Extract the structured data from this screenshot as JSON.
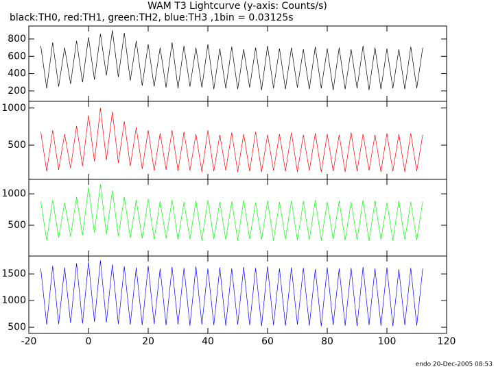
{
  "chart_data": [
    {
      "type": "line",
      "title": "WAM T3 Lightcurve (y-axis: Counts/s)",
      "subtitle": "black:TH0, red:TH1, green:TH2, blue:TH3 ,1bin = 0.03125s",
      "color": "#000000",
      "ylim": [
        80,
        950
      ],
      "yticks": [
        200,
        400,
        600,
        800
      ],
      "x": [
        -16,
        -14,
        -12,
        -10,
        -8,
        -6,
        -4,
        -2,
        0,
        2,
        4,
        6,
        8,
        10,
        12,
        14,
        16,
        18,
        20,
        22,
        24,
        26,
        28,
        30,
        32,
        34,
        36,
        38,
        40,
        42,
        44,
        46,
        48,
        50,
        52,
        54,
        56,
        58,
        60,
        62,
        64,
        66,
        68,
        70,
        72,
        74,
        76,
        78,
        80,
        82,
        84,
        86,
        88,
        90,
        92,
        94,
        96,
        98,
        100,
        102,
        104,
        106,
        108,
        110,
        112
      ],
      "values": [
        720,
        230,
        760,
        250,
        700,
        280,
        780,
        300,
        820,
        330,
        860,
        380,
        900,
        360,
        870,
        320,
        780,
        260,
        740,
        250,
        700,
        240,
        760,
        230,
        720,
        250,
        700,
        240,
        740,
        220,
        690,
        230,
        710,
        220,
        680,
        240,
        700,
        210,
        720,
        230,
        690,
        220,
        700,
        240,
        680,
        220,
        710,
        230,
        690,
        210,
        700,
        220,
        680,
        230,
        720,
        210,
        700,
        220,
        690,
        230,
        680,
        220,
        710,
        230,
        700
      ]
    },
    {
      "type": "line",
      "color": "#ff0000",
      "ylim": [
        40,
        1090
      ],
      "yticks": [
        500,
        1000
      ],
      "x": [
        -16,
        -14,
        -12,
        -10,
        -8,
        -6,
        -4,
        -2,
        0,
        2,
        4,
        6,
        8,
        10,
        12,
        14,
        16,
        18,
        20,
        22,
        24,
        26,
        28,
        30,
        32,
        34,
        36,
        38,
        40,
        42,
        44,
        46,
        48,
        50,
        52,
        54,
        56,
        58,
        60,
        62,
        64,
        66,
        68,
        70,
        72,
        74,
        76,
        78,
        80,
        82,
        84,
        86,
        88,
        90,
        92,
        94,
        96,
        98,
        100,
        102,
        104,
        106,
        108,
        110,
        112
      ],
      "values": [
        680,
        150,
        700,
        170,
        650,
        190,
        760,
        220,
        900,
        280,
        1000,
        300,
        950,
        260,
        820,
        220,
        740,
        180,
        700,
        160,
        660,
        170,
        700,
        150,
        680,
        160,
        650,
        140,
        700,
        150,
        640,
        160,
        670,
        140,
        650,
        150,
        680,
        140,
        640,
        160,
        650,
        150,
        670,
        140,
        640,
        160,
        660,
        140,
        650,
        150,
        640,
        140,
        670,
        150,
        650,
        160,
        640,
        140,
        660,
        150,
        650,
        140,
        660,
        150,
        640
      ]
    },
    {
      "type": "line",
      "color": "#00ff00",
      "ylim": [
        10,
        1230
      ],
      "yticks": [
        500,
        1000
      ],
      "x": [
        -16,
        -14,
        -12,
        -10,
        -8,
        -6,
        -4,
        -2,
        0,
        2,
        4,
        6,
        8,
        10,
        12,
        14,
        16,
        18,
        20,
        22,
        24,
        26,
        28,
        30,
        32,
        34,
        36,
        38,
        40,
        42,
        44,
        46,
        48,
        50,
        52,
        54,
        56,
        58,
        60,
        62,
        64,
        66,
        68,
        70,
        72,
        74,
        76,
        78,
        80,
        82,
        84,
        86,
        88,
        90,
        92,
        94,
        96,
        98,
        100,
        102,
        104,
        106,
        108,
        110,
        112
      ],
      "values": [
        880,
        260,
        900,
        300,
        860,
        320,
        950,
        340,
        1100,
        380,
        1150,
        360,
        1050,
        330,
        950,
        300,
        900,
        290,
        920,
        280,
        880,
        290,
        900,
        270,
        870,
        280,
        890,
        260,
        900,
        280,
        870,
        270,
        880,
        260,
        900,
        280,
        860,
        270,
        890,
        260,
        870,
        280,
        890,
        260,
        880,
        270,
        900,
        260,
        870,
        280,
        890,
        260,
        870,
        270,
        900,
        250,
        880,
        270,
        860,
        260,
        890,
        270,
        870,
        260,
        880
      ]
    },
    {
      "type": "line",
      "color": "#0000ff",
      "ylim": [
        385,
        1835
      ],
      "yticks": [
        500,
        1000,
        1500
      ],
      "xlim": [
        -20,
        120
      ],
      "xticks": [
        -20,
        0,
        20,
        40,
        60,
        80,
        100,
        120
      ],
      "x": [
        -16,
        -14,
        -12,
        -10,
        -8,
        -6,
        -4,
        -2,
        0,
        2,
        4,
        6,
        8,
        10,
        12,
        14,
        16,
        18,
        20,
        22,
        24,
        26,
        28,
        30,
        32,
        34,
        36,
        38,
        40,
        42,
        44,
        46,
        48,
        50,
        52,
        54,
        56,
        58,
        60,
        62,
        64,
        66,
        68,
        70,
        72,
        74,
        76,
        78,
        80,
        82,
        84,
        86,
        88,
        90,
        92,
        94,
        96,
        98,
        100,
        102,
        104,
        106,
        108,
        110,
        112
      ],
      "values": [
        1600,
        550,
        1650,
        560,
        1620,
        580,
        1700,
        570,
        1720,
        600,
        1750,
        590,
        1680,
        560,
        1640,
        550,
        1620,
        540,
        1650,
        560,
        1600,
        540,
        1630,
        550,
        1610,
        530,
        1640,
        550,
        1600,
        540,
        1620,
        530,
        1600,
        550,
        1630,
        540,
        1610,
        520,
        1640,
        540,
        1600,
        530,
        1620,
        550,
        1610,
        530,
        1590,
        520,
        1620,
        540,
        1600,
        530,
        1610,
        520,
        1630,
        540,
        1600,
        530,
        1620,
        520,
        1590,
        540,
        1610,
        530,
        1600
      ]
    }
  ],
  "footer": "endo 20-Dec-2005 08:53"
}
